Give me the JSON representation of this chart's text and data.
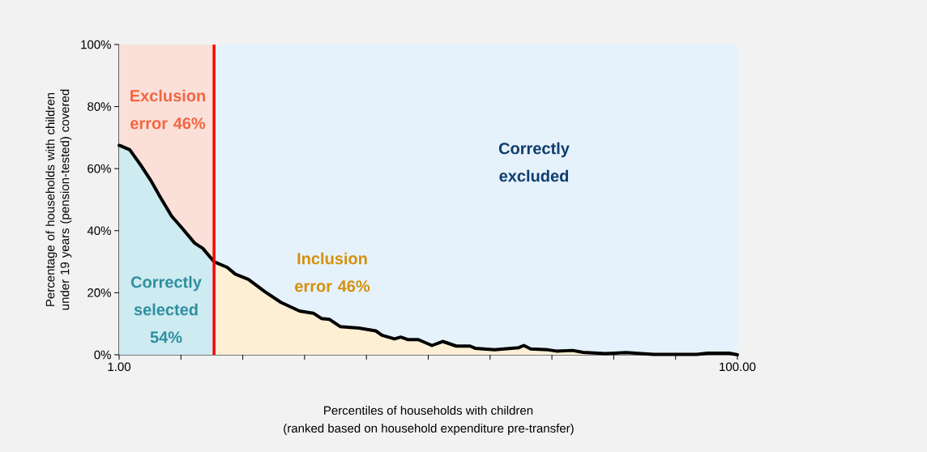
{
  "chart_data": {
    "type": "area",
    "xlabel": "Percentiles of households with children",
    "ylabel": "Percentage of households with children under 19 years (pension-tested) covered",
    "xlim": [
      1,
      100
    ],
    "ylim": [
      0,
      100
    ],
    "xticks": [
      {
        "value": 1,
        "label": "1.00"
      },
      {
        "value": 10.9,
        "label": null
      },
      {
        "value": 20.8,
        "label": null
      },
      {
        "value": 30.7,
        "label": null
      },
      {
        "value": 40.6,
        "label": null
      },
      {
        "value": 50.5,
        "label": null
      },
      {
        "value": 60.4,
        "label": null
      },
      {
        "value": 70.3,
        "label": null
      },
      {
        "value": 80.2,
        "label": null
      },
      {
        "value": 90.1,
        "label": null
      },
      {
        "value": 100,
        "label": "100.00"
      }
    ],
    "yticks": [
      {
        "value": 0,
        "label": "0%"
      },
      {
        "value": 20,
        "label": "20%"
      },
      {
        "value": 40,
        "label": "40%"
      },
      {
        "value": 60,
        "label": "60%"
      },
      {
        "value": 80,
        "label": "80%"
      },
      {
        "value": 100,
        "label": "100%"
      }
    ],
    "grid": false,
    "bands": [
      {
        "axis": "x",
        "from": 1,
        "to": 16.2,
        "color": "#fbe0da"
      },
      {
        "axis": "x",
        "from": 16.2,
        "to": 100,
        "color": "#e6f2fb"
      }
    ],
    "ref_lines": [
      {
        "axis": "x",
        "value": 16.2,
        "color": "#ff0000"
      }
    ],
    "series": [
      {
        "color": "#cdebf0",
        "x": [
          1,
          1.2,
          2.7,
          4.4,
          6.1,
          7.6,
          9.4,
          11.1,
          13.1,
          14.4,
          16.2
        ],
        "values": [
          67.5,
          67.4,
          66.1,
          61.3,
          56.1,
          50.8,
          44.7,
          40.8,
          36.0,
          34.3,
          30.0
        ]
      },
      {
        "color": "#fdefd4",
        "x": [
          16.2,
          18.3,
          19.6,
          21.7,
          24.3,
          26.9,
          29.9,
          32.1,
          33.4,
          34.7,
          36.4,
          39.4,
          42.1,
          43.1,
          45.1,
          46.1,
          47.2,
          48.9,
          51.1,
          52.8,
          55,
          57.2,
          58,
          61.1,
          65,
          65.8,
          66.9,
          69.7,
          71,
          73.6,
          75.3,
          78.8,
          82.2,
          86.6,
          93.5,
          95.2,
          98.7,
          100
        ],
        "values": [
          30.0,
          28.2,
          26.0,
          24.3,
          20.4,
          16.9,
          14.1,
          13.4,
          11.7,
          11.4,
          9.1,
          8.6,
          7.7,
          6.3,
          5.1,
          5.7,
          4.9,
          4.9,
          3.0,
          4.3,
          2.8,
          2.8,
          2.1,
          1.6,
          2.3,
          3.0,
          1.9,
          1.6,
          1.2,
          1.4,
          0.8,
          0.4,
          0.7,
          0.1,
          0.1,
          0.5,
          0.5,
          0
        ]
      },
      {
        "type": "line",
        "color": "#000000",
        "x": [
          1,
          1.2,
          2.7,
          4.4,
          6.1,
          7.6,
          9.4,
          11.1,
          13.1,
          14.4,
          16.2,
          18.3,
          19.6,
          21.7,
          24.3,
          26.9,
          29.9,
          32.1,
          33.4,
          34.7,
          36.4,
          39.4,
          42.1,
          43.1,
          45.1,
          46.1,
          47.2,
          48.9,
          51.1,
          52.8,
          55,
          57.2,
          58,
          61.1,
          65,
          65.8,
          66.9,
          69.7,
          71,
          73.6,
          75.3,
          78.8,
          82.2,
          86.6,
          93.5,
          95.2,
          98.7,
          100
        ],
        "values": [
          67.5,
          67.4,
          66.1,
          61.3,
          56.1,
          50.8,
          44.7,
          40.8,
          36.0,
          34.3,
          30.0,
          28.2,
          26.0,
          24.3,
          20.4,
          16.9,
          14.1,
          13.4,
          11.7,
          11.4,
          9.1,
          8.6,
          7.7,
          6.3,
          5.1,
          5.7,
          4.9,
          4.9,
          3.0,
          4.3,
          2.8,
          2.8,
          2.1,
          1.6,
          2.3,
          3.0,
          1.9,
          1.6,
          1.2,
          1.4,
          0.8,
          0.4,
          0.7,
          0.1,
          0.1,
          0.5,
          0.5,
          0
        ]
      }
    ],
    "annotations": [
      "Exclusion error 46%",
      "Correctly selected 54%",
      "Inclusion error 46%",
      "Correctly excluded",
      "(ranked based on household expenditure pre-transfer)"
    ]
  }
}
